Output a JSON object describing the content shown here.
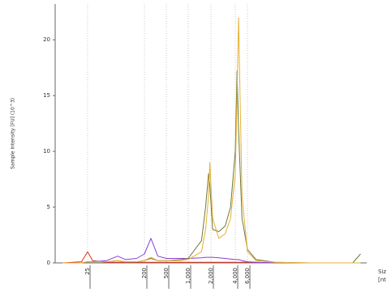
{
  "chart_data": {
    "type": "line",
    "y_label": "Sample Intensity [FU] (10^3)",
    "x_label": [
      "Siz",
      "[nt"
    ],
    "x": [
      10,
      20,
      25,
      30,
      50,
      75,
      100,
      150,
      200,
      262,
      350,
      500,
      800,
      1000,
      1500,
      1700,
      1860,
      1930,
      2100,
      2500,
      3000,
      3500,
      4000,
      4250,
      4460,
      5000,
      6000,
      8000,
      15000,
      50000,
      200000,
      260000
    ],
    "series": [
      {
        "color": "#e0301e",
        "values": [
          0,
          0.1,
          1.0,
          0.2,
          0.05,
          0.05,
          0.05,
          0.05,
          0.05,
          0.05,
          0.05,
          0.05,
          0.05,
          0.05,
          0.05,
          0.05,
          0.05,
          0.05,
          0.05,
          0.05,
          0.05,
          0.05,
          0.05,
          0.05,
          0.05,
          0.05,
          0.05,
          0.05,
          0,
          0,
          0,
          0
        ]
      },
      {
        "color": "#8a3fd0",
        "values": [
          0,
          0,
          0.1,
          0.1,
          0.2,
          0.6,
          0.3,
          0.4,
          0.8,
          2.2,
          0.6,
          0.4,
          0.4,
          0.4,
          0.45,
          0.5,
          0.5,
          0.5,
          0.5,
          0.45,
          0.4,
          0.35,
          0.3,
          0.3,
          0.3,
          0.2,
          0.1,
          0.05,
          0,
          0,
          0,
          0
        ]
      },
      {
        "color": "#6b7a3a",
        "values": [
          0,
          0,
          0.1,
          0.1,
          0.1,
          0.2,
          0.1,
          0.1,
          0.2,
          0.4,
          0.2,
          0.2,
          0.3,
          0.4,
          2,
          5,
          8,
          7,
          3,
          2.8,
          3.3,
          5,
          10,
          17.2,
          12,
          4,
          1.2,
          0.3,
          0.05,
          0,
          0,
          0.8
        ]
      },
      {
        "color": "#e8b030",
        "values": [
          0,
          0,
          0.1,
          0.1,
          0.1,
          0.2,
          0.1,
          0.1,
          0.2,
          0.5,
          0.2,
          0.2,
          0.2,
          0.3,
          1,
          3,
          6,
          9,
          4,
          2.2,
          2.6,
          4,
          8,
          15,
          22,
          6,
          1,
          0.2,
          0.05,
          0,
          0,
          0
        ]
      }
    ],
    "xlim": [
      8,
      300000
    ],
    "xticks": [
      25,
      200,
      500,
      {
        "value": 1000,
        "label": "1,000"
      },
      {
        "value": 2000,
        "label": "2,000"
      },
      {
        "value": 4000,
        "label": "4,000"
      },
      {
        "value": 6000,
        "label": "6,000"
      }
    ],
    "ylim": [
      0,
      23.2
    ],
    "yticks": [
      0,
      5,
      10,
      15,
      20
    ],
    "grid": true
  }
}
